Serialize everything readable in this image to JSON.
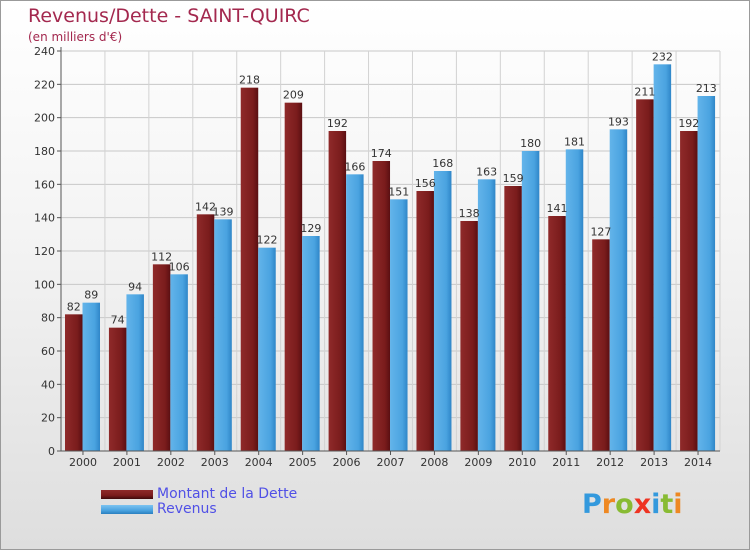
{
  "chart_data": {
    "type": "bar",
    "title": "Revenus/Dette - SAINT-QUIRC",
    "subtitle": "(en milliers d'€)",
    "xlabel": "",
    "ylabel": "",
    "ylim": [
      0,
      240
    ],
    "yticks": [
      0,
      20,
      40,
      60,
      80,
      100,
      120,
      140,
      160,
      180,
      200,
      220,
      240
    ],
    "grid": true,
    "categories": [
      "2000",
      "2001",
      "2002",
      "2003",
      "2004",
      "2005",
      "2006",
      "2007",
      "2008",
      "2009",
      "2010",
      "2011",
      "2012",
      "2013",
      "2014"
    ],
    "series": [
      {
        "name": "Montant de la Dette",
        "color": "#7a1c1c",
        "values": [
          82,
          74,
          112,
          142,
          218,
          209,
          192,
          174,
          156,
          138,
          159,
          141,
          127,
          211,
          192
        ],
        "labels": [
          "82",
          "74",
          "112",
          "142",
          "218",
          "209",
          "192",
          "174",
          "156",
          "138",
          "159",
          "141",
          "127",
          "211",
          "192"
        ]
      },
      {
        "name": "Revenus",
        "color": "#4aa3e0",
        "values": [
          89,
          94,
          106,
          139,
          122,
          129,
          166,
          151,
          168,
          163,
          180,
          181,
          193,
          232,
          213
        ],
        "labels": [
          "89",
          "94",
          "106",
          "139",
          "122",
          "129",
          "166",
          "151",
          "168",
          "163",
          "180",
          "181",
          "193",
          "232",
          "213"
        ]
      }
    ],
    "legend": [
      {
        "label": "Montant de la Dette",
        "color": "#7a1c1c"
      },
      {
        "label": "Revenus",
        "color": "#4aa3e0"
      }
    ]
  },
  "branding": {
    "logo_letters": [
      "P",
      "r",
      "o",
      "x",
      "i",
      "t",
      "i"
    ],
    "logo_colors": [
      "#3399dd",
      "#ee8822",
      "#88bb33",
      "#ee3322",
      "#3399dd",
      "#88bb33",
      "#ee8822"
    ]
  }
}
